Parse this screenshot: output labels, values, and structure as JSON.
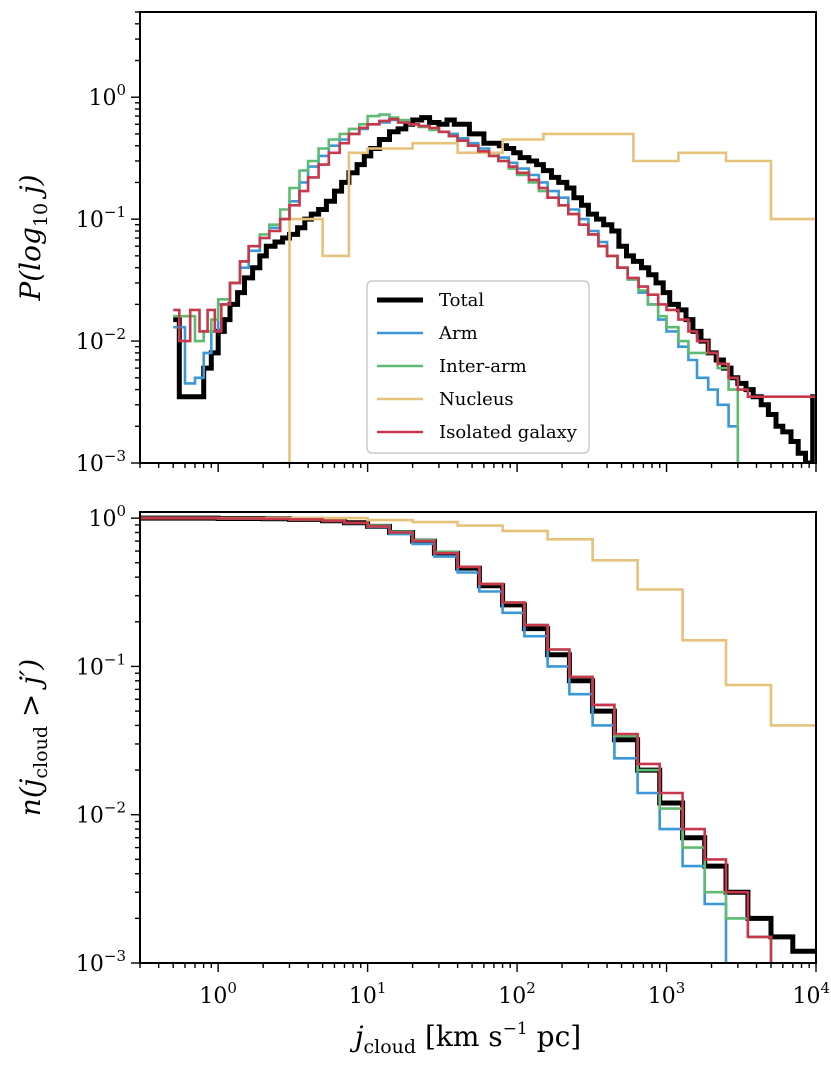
{
  "chart_data": [
    {
      "panel": "top",
      "type": "line",
      "step": true,
      "xscale": "log",
      "yscale": "log",
      "xlim": [
        0.3,
        10000
      ],
      "ylim": [
        0.001,
        5
      ],
      "ylabel_parts": [
        "P(log",
        "10",
        " j)"
      ],
      "yticks": [
        {
          "value": 1,
          "base": "10",
          "exp": "0"
        },
        {
          "value": 0.1,
          "base": "10",
          "exp": "−1"
        },
        {
          "value": 0.01,
          "base": "10",
          "exp": "−2"
        },
        {
          "value": 0.001,
          "base": "10",
          "exp": "−3"
        }
      ],
      "show_x_tick_labels": false,
      "legend_position": "lower-center",
      "series": [
        {
          "name": "Total",
          "color": "#000000",
          "width": 5,
          "x": [
            0.5,
            0.55,
            0.6,
            0.7,
            0.8,
            0.9,
            1.0,
            1.1,
            1.2,
            1.35,
            1.5,
            1.7,
            1.9,
            2.1,
            2.4,
            2.7,
            3.0,
            3.4,
            3.8,
            4.2,
            4.7,
            5.3,
            6.0,
            6.7,
            7.5,
            8.5,
            9.5,
            10.5,
            12,
            14,
            16,
            18,
            20,
            23,
            26,
            30,
            34,
            38,
            43,
            48,
            54,
            60,
            68,
            76,
            85,
            95,
            105,
            120,
            135,
            150,
            170,
            190,
            215,
            240,
            270,
            300,
            340,
            380,
            430,
            480,
            540,
            600,
            680,
            760,
            850,
            950,
            1050,
            1200,
            1350,
            1500,
            1700,
            1900,
            2150,
            2400,
            2700,
            3000,
            3400,
            3800,
            4300,
            4800,
            5400,
            6000,
            6800,
            7600,
            8500,
            9500,
            10000
          ],
          "y": [
            0.015,
            0.0035,
            0.0035,
            0.0035,
            0.006,
            0.008,
            0.012,
            0.015,
            0.02,
            0.025,
            0.033,
            0.04,
            0.05,
            0.06,
            0.065,
            0.07,
            0.075,
            0.085,
            0.1,
            0.11,
            0.12,
            0.14,
            0.17,
            0.2,
            0.24,
            0.28,
            0.33,
            0.38,
            0.45,
            0.52,
            0.55,
            0.6,
            0.65,
            0.68,
            0.62,
            0.6,
            0.65,
            0.6,
            0.6,
            0.5,
            0.5,
            0.42,
            0.42,
            0.4,
            0.38,
            0.35,
            0.32,
            0.3,
            0.28,
            0.25,
            0.22,
            0.2,
            0.18,
            0.15,
            0.13,
            0.11,
            0.1,
            0.09,
            0.08,
            0.06,
            0.05,
            0.045,
            0.04,
            0.035,
            0.03,
            0.025,
            0.02,
            0.018,
            0.015,
            0.012,
            0.01,
            0.008,
            0.007,
            0.006,
            0.005,
            0.0045,
            0.004,
            0.0035,
            0.003,
            0.0025,
            0.002,
            0.0018,
            0.0015,
            0.0012,
            0.001,
            0.0035,
            0.0035
          ]
        },
        {
          "name": "Arm",
          "color": "#3a98d8",
          "width": 2.6,
          "x": [
            0.5,
            0.6,
            0.7,
            0.8,
            0.9,
            1.0,
            1.2,
            1.4,
            1.6,
            1.9,
            2.2,
            2.6,
            3.0,
            3.5,
            4.0,
            4.7,
            5.5,
            6.5,
            7.5,
            8.8,
            10,
            12,
            14,
            16,
            19,
            22,
            26,
            30,
            35,
            40,
            47,
            55,
            65,
            75,
            88,
            100,
            120,
            140,
            160,
            190,
            220,
            260,
            300,
            350,
            400,
            470,
            550,
            650,
            750,
            880,
            1000,
            1200,
            1400,
            1600,
            1900,
            2200,
            2600,
            3000
          ],
          "y": [
            0.013,
            0.0045,
            0.005,
            0.008,
            0.012,
            0.02,
            0.03,
            0.04,
            0.055,
            0.07,
            0.085,
            0.1,
            0.14,
            0.2,
            0.27,
            0.33,
            0.4,
            0.45,
            0.5,
            0.55,
            0.6,
            0.62,
            0.65,
            0.62,
            0.6,
            0.58,
            0.55,
            0.52,
            0.5,
            0.46,
            0.42,
            0.38,
            0.35,
            0.32,
            0.29,
            0.26,
            0.23,
            0.2,
            0.17,
            0.15,
            0.12,
            0.1,
            0.08,
            0.065,
            0.05,
            0.04,
            0.032,
            0.025,
            0.02,
            0.015,
            0.012,
            0.009,
            0.007,
            0.005,
            0.004,
            0.003,
            0.002,
            0.001
          ]
        },
        {
          "name": "Inter-arm",
          "color": "#5fbb72",
          "width": 2.6,
          "x": [
            0.5,
            0.6,
            0.7,
            0.8,
            0.9,
            1.0,
            1.2,
            1.4,
            1.6,
            1.9,
            2.2,
            2.6,
            3.0,
            3.5,
            4.0,
            4.7,
            5.5,
            6.5,
            7.5,
            8.8,
            10,
            12,
            14,
            16,
            19,
            22,
            26,
            30,
            35,
            40,
            47,
            55,
            65,
            75,
            88,
            100,
            120,
            140,
            160,
            190,
            220,
            260,
            300,
            350,
            400,
            470,
            550,
            650,
            750,
            880,
            1000,
            1200,
            1400,
            1600,
            1900,
            2200,
            2600,
            3000
          ],
          "y": [
            0.016,
            0.016,
            0.01,
            0.012,
            0.015,
            0.022,
            0.03,
            0.045,
            0.06,
            0.075,
            0.09,
            0.12,
            0.18,
            0.25,
            0.3,
            0.38,
            0.45,
            0.5,
            0.55,
            0.6,
            0.7,
            0.72,
            0.68,
            0.65,
            0.6,
            0.57,
            0.54,
            0.52,
            0.48,
            0.44,
            0.4,
            0.36,
            0.33,
            0.3,
            0.26,
            0.23,
            0.2,
            0.17,
            0.15,
            0.13,
            0.11,
            0.09,
            0.075,
            0.06,
            0.05,
            0.04,
            0.032,
            0.026,
            0.02,
            0.016,
            0.013,
            0.01,
            0.008,
            0.008,
            0.008,
            0.006,
            0.004,
            0.001
          ]
        },
        {
          "name": "Nucleus",
          "color": "#e6c27a",
          "width": 2.6,
          "x": [
            2.7,
            3.0,
            5.0,
            7.5,
            10,
            20,
            40,
            80,
            150,
            300,
            600,
            1200,
            2500,
            5000,
            9500,
            10000
          ],
          "y": [
            0.001,
            0.1,
            0.05,
            0.35,
            0.38,
            0.42,
            0.35,
            0.45,
            0.5,
            0.5,
            0.3,
            0.35,
            0.3,
            0.1,
            0.1,
            0.001
          ]
        },
        {
          "name": "Isolated galaxy",
          "color": "#c8374a",
          "width": 2.6,
          "x": [
            0.5,
            0.55,
            0.65,
            0.75,
            0.85,
            0.95,
            1.05,
            1.2,
            1.4,
            1.6,
            1.9,
            2.2,
            2.6,
            3.0,
            3.5,
            4.0,
            4.7,
            5.5,
            6.5,
            7.5,
            8.8,
            10,
            12,
            14,
            16,
            19,
            22,
            26,
            30,
            35,
            40,
            47,
            55,
            65,
            75,
            88,
            100,
            120,
            140,
            160,
            190,
            220,
            260,
            300,
            350,
            400,
            470,
            550,
            650,
            750,
            880,
            1000,
            1200,
            1400,
            1600,
            1900,
            2200,
            2600,
            3000,
            3500,
            4000,
            4700,
            5500,
            6500,
            7500,
            8800,
            10000
          ],
          "y": [
            0.018,
            0.01,
            0.018,
            0.012,
            0.018,
            0.012,
            0.02,
            0.03,
            0.045,
            0.06,
            0.07,
            0.08,
            0.1,
            0.13,
            0.17,
            0.22,
            0.28,
            0.35,
            0.42,
            0.5,
            0.56,
            0.6,
            0.64,
            0.66,
            0.62,
            0.6,
            0.58,
            0.56,
            0.52,
            0.48,
            0.44,
            0.4,
            0.36,
            0.33,
            0.3,
            0.27,
            0.24,
            0.21,
            0.18,
            0.15,
            0.13,
            0.11,
            0.09,
            0.075,
            0.06,
            0.05,
            0.04,
            0.033,
            0.028,
            0.024,
            0.02,
            0.018,
            0.015,
            0.012,
            0.01,
            0.008,
            0.0065,
            0.005,
            0.004,
            0.0035,
            0.0035,
            0.0035,
            0.0035,
            0.0035,
            0.0035,
            0.0035,
            0.0035
          ]
        }
      ]
    },
    {
      "panel": "bottom",
      "type": "line",
      "step": true,
      "xscale": "log",
      "yscale": "log",
      "xlim": [
        0.3,
        10000
      ],
      "ylim": [
        0.001,
        1.1
      ],
      "ylabel_parts": [
        "n(j",
        "cloud",
        " > j′)"
      ],
      "xlabel_parts": [
        "j",
        "cloud",
        " [km s",
        "−1",
        " pc]"
      ],
      "xticks": [
        {
          "value": 1,
          "base": "10",
          "exp": "0"
        },
        {
          "value": 10,
          "base": "10",
          "exp": "1"
        },
        {
          "value": 100,
          "base": "10",
          "exp": "2"
        },
        {
          "value": 1000,
          "base": "10",
          "exp": "3"
        },
        {
          "value": 10000,
          "base": "10",
          "exp": "4"
        }
      ],
      "yticks": [
        {
          "value": 1,
          "base": "10",
          "exp": "0"
        },
        {
          "value": 0.1,
          "base": "10",
          "exp": "−1"
        },
        {
          "value": 0.01,
          "base": "10",
          "exp": "−2"
        },
        {
          "value": 0.001,
          "base": "10",
          "exp": "−3"
        }
      ],
      "series": [
        {
          "name": "Total",
          "color": "#000000",
          "width": 5,
          "x": [
            0.3,
            1,
            2,
            3,
            5,
            7,
            10,
            14,
            20,
            28,
            40,
            56,
            80,
            112,
            160,
            224,
            320,
            448,
            640,
            900,
            1280,
            1800,
            2500,
            3500,
            5000,
            7000,
            10000
          ],
          "y": [
            1.0,
            0.995,
            0.99,
            0.98,
            0.96,
            0.93,
            0.88,
            0.8,
            0.7,
            0.58,
            0.46,
            0.35,
            0.26,
            0.18,
            0.12,
            0.08,
            0.05,
            0.032,
            0.02,
            0.012,
            0.007,
            0.0045,
            0.003,
            0.002,
            0.0015,
            0.0012,
            0.0012
          ]
        },
        {
          "name": "Arm",
          "color": "#3a98d8",
          "width": 2.6,
          "x": [
            0.3,
            1,
            2,
            3,
            5,
            7,
            10,
            14,
            20,
            28,
            40,
            56,
            80,
            112,
            160,
            224,
            320,
            448,
            640,
            900,
            1280,
            1800,
            2500
          ],
          "y": [
            1.0,
            0.995,
            0.99,
            0.98,
            0.96,
            0.93,
            0.87,
            0.78,
            0.67,
            0.55,
            0.43,
            0.32,
            0.23,
            0.16,
            0.1,
            0.065,
            0.04,
            0.024,
            0.014,
            0.008,
            0.0045,
            0.0025,
            0.001
          ]
        },
        {
          "name": "Inter-arm",
          "color": "#5fbb72",
          "width": 2.6,
          "x": [
            0.3,
            1,
            2,
            3,
            5,
            7,
            10,
            14,
            20,
            28,
            40,
            56,
            80,
            112,
            160,
            224,
            320,
            448,
            640,
            900,
            1280,
            1800,
            2500,
            3500,
            5000
          ],
          "y": [
            1.0,
            0.995,
            0.99,
            0.98,
            0.96,
            0.93,
            0.89,
            0.81,
            0.71,
            0.59,
            0.47,
            0.36,
            0.27,
            0.19,
            0.13,
            0.085,
            0.055,
            0.034,
            0.02,
            0.011,
            0.006,
            0.003,
            0.002,
            0.0015,
            0.001
          ]
        },
        {
          "name": "Nucleus",
          "color": "#e6c27a",
          "width": 2.6,
          "x": [
            0.3,
            5,
            10,
            20,
            40,
            80,
            160,
            320,
            640,
            1280,
            2500,
            5000,
            10000
          ],
          "y": [
            1.0,
            1.0,
            0.97,
            0.94,
            0.89,
            0.82,
            0.72,
            0.52,
            0.33,
            0.15,
            0.075,
            0.04,
            0.04
          ]
        },
        {
          "name": "Isolated galaxy",
          "color": "#c8374a",
          "width": 2.6,
          "x": [
            0.3,
            1,
            2,
            3,
            5,
            7,
            10,
            14,
            20,
            28,
            40,
            56,
            80,
            112,
            160,
            224,
            320,
            448,
            640,
            900,
            1280,
            1800,
            2500,
            3500,
            5000
          ],
          "y": [
            1.0,
            0.995,
            0.99,
            0.98,
            0.96,
            0.93,
            0.88,
            0.8,
            0.7,
            0.58,
            0.47,
            0.36,
            0.27,
            0.19,
            0.13,
            0.085,
            0.055,
            0.035,
            0.022,
            0.014,
            0.008,
            0.005,
            0.003,
            0.0015,
            0.001
          ]
        }
      ]
    }
  ]
}
